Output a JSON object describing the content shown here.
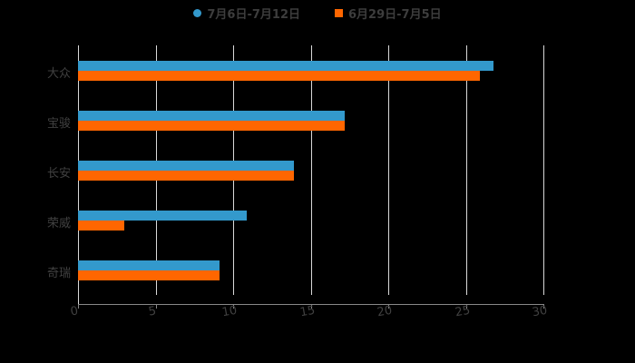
{
  "chart_data": {
    "type": "bar",
    "orientation": "horizontal",
    "title": "",
    "categories": [
      "大众",
      "宝骏",
      "长安",
      "荣威",
      "奇瑞"
    ],
    "series": [
      {
        "name": "7月6日-7月12日",
        "color": "#3399cc",
        "values": [
          26.8,
          17.2,
          13.9,
          10.9,
          9.1
        ]
      },
      {
        "name": "6月29日-7月5日",
        "color": "#ff6600",
        "values": [
          25.9,
          17.2,
          13.9,
          3.0,
          9.1
        ]
      }
    ],
    "xlabel": "",
    "ylabel": "",
    "xlim": [
      0,
      30
    ],
    "xticks": [
      "0",
      "5",
      "10",
      "15",
      "20",
      "25",
      "30"
    ],
    "grid": true,
    "legend_position": "top"
  },
  "legend": {
    "items": [
      {
        "label": "7月6日-7月12日",
        "color": "#3399cc",
        "marker": "circle"
      },
      {
        "label": "6月29日-7月5日",
        "color": "#ff6600",
        "marker": "square"
      }
    ]
  }
}
